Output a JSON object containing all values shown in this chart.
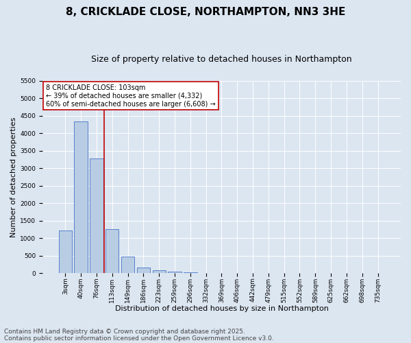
{
  "title1": "8, CRICKLADE CLOSE, NORTHAMPTON, NN3 3HE",
  "title2": "Size of property relative to detached houses in Northampton",
  "xlabel": "Distribution of detached houses by size in Northampton",
  "ylabel": "Number of detached properties",
  "categories": [
    "3sqm",
    "40sqm",
    "76sqm",
    "113sqm",
    "149sqm",
    "186sqm",
    "223sqm",
    "259sqm",
    "296sqm",
    "332sqm",
    "369sqm",
    "406sqm",
    "442sqm",
    "479sqm",
    "515sqm",
    "552sqm",
    "589sqm",
    "625sqm",
    "662sqm",
    "698sqm",
    "735sqm"
  ],
  "values": [
    1220,
    4330,
    3270,
    1260,
    480,
    170,
    80,
    40,
    30,
    0,
    0,
    0,
    0,
    0,
    0,
    0,
    0,
    0,
    0,
    0,
    0
  ],
  "bar_color": "#b8cce4",
  "bar_edge_color": "#4472c4",
  "vline_x": 2.5,
  "vline_color": "#c00000",
  "annotation_text": "8 CRICKLADE CLOSE: 103sqm\n← 39% of detached houses are smaller (4,332)\n60% of semi-detached houses are larger (6,608) →",
  "annotation_box_color": "#ffffff",
  "annotation_box_edge_color": "#c00000",
  "ylim": [
    0,
    5500
  ],
  "yticks": [
    0,
    500,
    1000,
    1500,
    2000,
    2500,
    3000,
    3500,
    4000,
    4500,
    5000,
    5500
  ],
  "footer1": "Contains HM Land Registry data © Crown copyright and database right 2025.",
  "footer2": "Contains public sector information licensed under the Open Government Licence v3.0.",
  "bg_color": "#dce6f1",
  "plot_bg_color": "#dce6f1",
  "title1_fontsize": 11,
  "title2_fontsize": 9,
  "footer_fontsize": 6.5,
  "xlabel_fontsize": 8,
  "ylabel_fontsize": 8,
  "annot_fontsize": 7,
  "tick_fontsize": 6.5
}
